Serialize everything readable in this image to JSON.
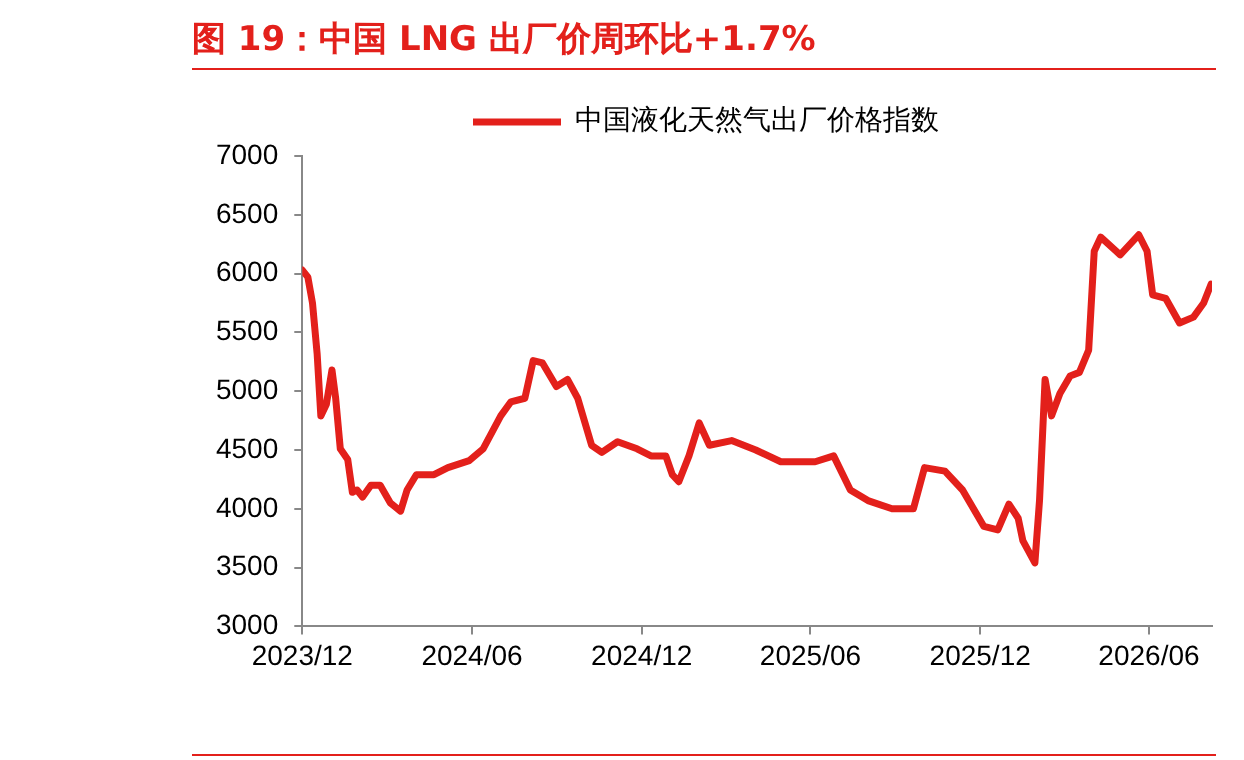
{
  "chart_data": {
    "type": "line",
    "title": "图 19：中国 LNG 出厂价周环比+1.7%",
    "legend": "top",
    "grid": false,
    "marker": "none",
    "line_style": "solid",
    "xlim": [
      "2023-12-01",
      "2026-08-08"
    ],
    "xticks": [
      {
        "value": "2023-12-01",
        "label": "2023/12"
      },
      {
        "value": "2024-06-01",
        "label": "2024/06"
      },
      {
        "value": "2024-12-01",
        "label": "2024/12"
      },
      {
        "value": "2025-06-01",
        "label": "2025/06"
      },
      {
        "value": "2025-12-01",
        "label": "2025/12"
      },
      {
        "value": "2026-06-01",
        "label": "2026/06"
      }
    ],
    "ylim": [
      3000,
      7000
    ],
    "yticks": [
      3000,
      3500,
      4000,
      4500,
      5000,
      5500,
      6000,
      6500,
      7000
    ],
    "series": [
      {
        "name": "中国液化天然气出厂价格指数",
        "color": "#e3201b",
        "x": [
          "2023-12-01",
          "2023-12-07",
          "2023-12-12",
          "2023-12-17",
          "2023-12-21",
          "2023-12-27",
          "2024-01-02",
          "2024-01-06",
          "2024-01-11",
          "2024-01-19",
          "2024-01-24",
          "2024-01-29",
          "2024-02-04",
          "2024-02-13",
          "2024-02-23",
          "2024-03-05",
          "2024-03-16",
          "2024-03-23",
          "2024-04-02",
          "2024-04-21",
          "2024-05-06",
          "2024-05-29",
          "2024-06-13",
          "2024-07-02",
          "2024-07-13",
          "2024-07-28",
          "2024-08-06",
          "2024-08-16",
          "2024-08-31",
          "2024-09-12",
          "2024-09-23",
          "2024-10-08",
          "2024-10-19",
          "2024-11-05",
          "2024-11-26",
          "2024-12-11",
          "2024-12-27",
          "2025-01-03",
          "2025-01-10",
          "2025-01-21",
          "2025-02-01",
          "2025-02-12",
          "2025-03-08",
          "2025-04-03",
          "2025-04-30",
          "2025-06-06",
          "2025-06-26",
          "2025-07-14",
          "2025-08-02",
          "2025-08-28",
          "2025-09-20",
          "2025-10-02",
          "2025-10-24",
          "2025-11-12",
          "2025-12-05",
          "2025-12-20",
          "2026-01-01",
          "2026-01-11",
          "2026-01-16",
          "2026-01-29",
          "2026-02-03",
          "2026-02-09",
          "2026-02-16",
          "2026-02-25",
          "2026-03-08",
          "2026-03-18",
          "2026-03-28",
          "2026-04-03",
          "2026-04-10",
          "2026-05-01",
          "2026-05-21",
          "2026-05-30",
          "2026-06-05",
          "2026-06-19",
          "2026-07-04",
          "2026-07-19",
          "2026-07-30",
          "2026-08-07"
        ],
        "values": [
          6030,
          5970,
          5750,
          5320,
          4790,
          4890,
          5180,
          4940,
          4510,
          4420,
          4140,
          4160,
          4100,
          4200,
          4200,
          4050,
          3980,
          4160,
          4290,
          4290,
          4350,
          4410,
          4510,
          4790,
          4910,
          4940,
          5260,
          5240,
          5040,
          5100,
          4940,
          4540,
          4480,
          4570,
          4510,
          4450,
          4450,
          4290,
          4230,
          4450,
          4730,
          4540,
          4580,
          4500,
          4400,
          4400,
          4450,
          4160,
          4070,
          4000,
          4000,
          4350,
          4320,
          4160,
          3850,
          3820,
          4040,
          3920,
          3730,
          3540,
          4070,
          5100,
          4790,
          4980,
          5130,
          5160,
          5350,
          6190,
          6310,
          6160,
          6330,
          6190,
          5820,
          5790,
          5580,
          5630,
          5750,
          5910
        ]
      }
    ]
  }
}
